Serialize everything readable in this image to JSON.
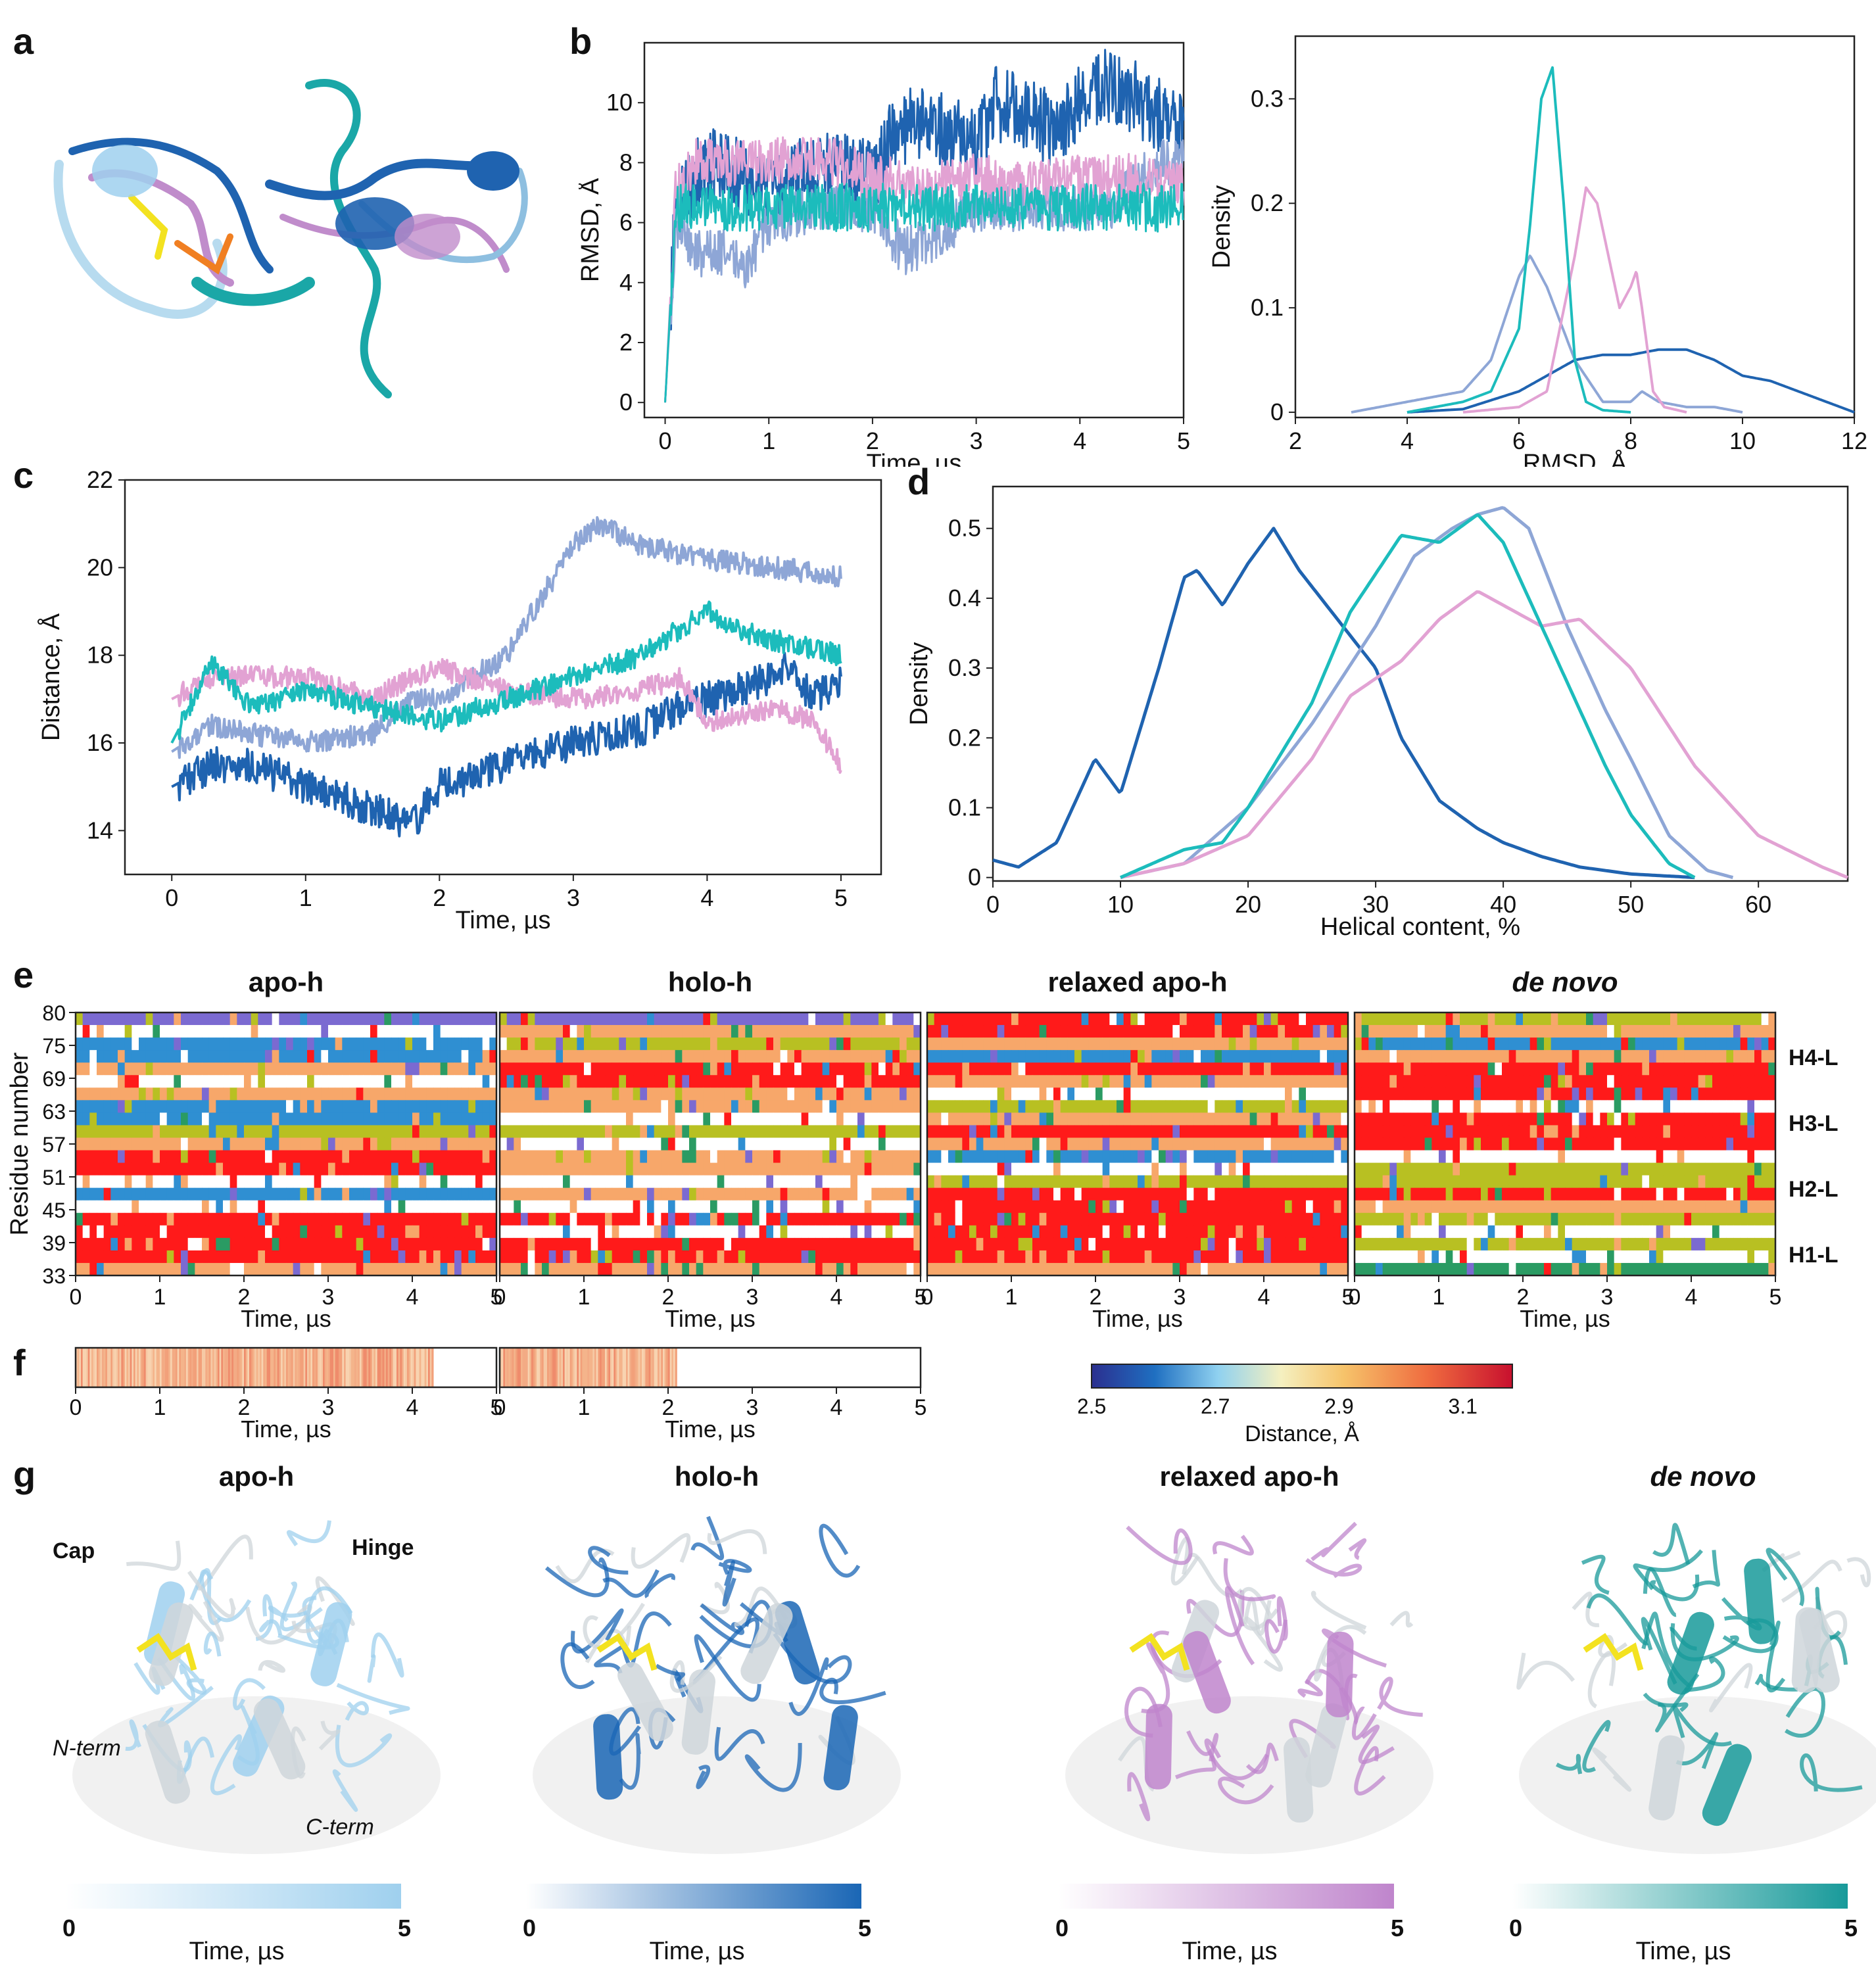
{
  "panel_labels": {
    "a": "a",
    "b": "b",
    "c": "c",
    "d": "d",
    "e": "e",
    "f": "f",
    "g": "g"
  },
  "colors": {
    "apo": "#1f63b0",
    "holo": "#8ea6d6",
    "relaxed": "#e2a2d3",
    "denovo": "#1cbcbc"
  },
  "chart_data": [
    {
      "id": "b_left",
      "type": "line",
      "title": "",
      "xlabel": "Time, µs",
      "ylabel": "RMSD, Å",
      "xlim": [
        -0.2,
        5.0
      ],
      "ylim": [
        -0.5,
        12.0
      ],
      "xticks": [
        0,
        1,
        2,
        3,
        4,
        5
      ],
      "yticks": [
        0,
        2,
        4,
        6,
        8,
        10
      ],
      "series": [
        {
          "name": "apo-h",
          "color": "#1f63b0",
          "x": [
            0,
            0.1,
            0.3,
            0.5,
            0.8,
            1.0,
            1.5,
            2.0,
            2.2,
            2.5,
            3.0,
            3.2,
            3.5,
            3.8,
            4.0,
            4.2,
            4.4,
            4.6,
            4.8,
            5.0
          ],
          "y": [
            0,
            6.5,
            7.5,
            8,
            7.5,
            7,
            8,
            7.5,
            9,
            9.5,
            8.5,
            10,
            9.5,
            9,
            10,
            10.5,
            10.5,
            10,
            9.5,
            9
          ]
        },
        {
          "name": "holo-h",
          "color": "#8ea6d6",
          "x": [
            0,
            0.1,
            0.3,
            0.6,
            0.8,
            1.0,
            1.5,
            2.0,
            2.3,
            2.6,
            3.0,
            3.5,
            4.0,
            4.3,
            4.6,
            4.8,
            5.0
          ],
          "y": [
            0,
            6,
            5,
            5,
            4.5,
            6,
            6.5,
            6.5,
            5,
            5.5,
            6.5,
            6.5,
            6.5,
            6.5,
            7.5,
            8,
            8
          ]
        },
        {
          "name": "relaxed apo-h",
          "color": "#e2a2d3",
          "x": [
            0,
            0.1,
            0.3,
            0.6,
            1.0,
            1.5,
            2.0,
            2.5,
            3.0,
            3.5,
            4.0,
            4.5,
            5.0
          ],
          "y": [
            0,
            7,
            8,
            8,
            8,
            8.2,
            7.5,
            7.2,
            7.5,
            7.2,
            7.5,
            7.5,
            7.2
          ]
        },
        {
          "name": "de novo",
          "color": "#1cbcbc",
          "x": [
            0,
            0.1,
            0.3,
            0.6,
            1.0,
            1.5,
            2.0,
            2.5,
            3.0,
            3.5,
            4.0,
            4.5,
            5.0
          ],
          "y": [
            0,
            6.5,
            6.5,
            6.5,
            6.5,
            6.5,
            6.5,
            6.5,
            6.5,
            6.5,
            6.5,
            6.5,
            6.5
          ]
        }
      ]
    },
    {
      "id": "b_right",
      "type": "line",
      "title": "",
      "xlabel": "RMSD, Å",
      "ylabel": "Density",
      "xlim": [
        2,
        12
      ],
      "ylim": [
        -0.005,
        0.36
      ],
      "xticks": [
        2,
        4,
        6,
        8,
        10,
        12
      ],
      "yticks": [
        0,
        0.1,
        0.2,
        0.3
      ],
      "yticklabels": [
        "0",
        "0.1",
        "0.2",
        "0.3"
      ],
      "series": [
        {
          "name": "apo-h",
          "color": "#1f63b0",
          "x": [
            4,
            5,
            6,
            7,
            7.5,
            8,
            8.5,
            9,
            9.5,
            10,
            10.5,
            11,
            11.5,
            12
          ],
          "y": [
            0,
            0.003,
            0.02,
            0.05,
            0.055,
            0.055,
            0.06,
            0.06,
            0.05,
            0.035,
            0.03,
            0.02,
            0.01,
            0
          ]
        },
        {
          "name": "holo-h",
          "color": "#8ea6d6",
          "x": [
            3,
            4,
            5,
            5.5,
            6,
            6.2,
            6.5,
            7,
            7.5,
            8,
            8.2,
            8.5,
            9,
            9.5,
            10
          ],
          "y": [
            0,
            0.01,
            0.02,
            0.05,
            0.13,
            0.15,
            0.12,
            0.05,
            0.01,
            0.01,
            0.02,
            0.01,
            0.005,
            0.005,
            0
          ]
        },
        {
          "name": "relaxed apo-h",
          "color": "#e2a2d3",
          "x": [
            5,
            6,
            6.5,
            7,
            7.2,
            7.4,
            7.6,
            7.8,
            8,
            8.1,
            8.2,
            8.4,
            8.6,
            9
          ],
          "y": [
            0,
            0.005,
            0.02,
            0.15,
            0.215,
            0.2,
            0.15,
            0.1,
            0.12,
            0.135,
            0.1,
            0.02,
            0.005,
            0
          ]
        },
        {
          "name": "de novo",
          "color": "#1cbcbc",
          "x": [
            4,
            4.5,
            5,
            5.5,
            6,
            6.2,
            6.4,
            6.6,
            6.8,
            7,
            7.2,
            7.5,
            8
          ],
          "y": [
            0,
            0.005,
            0.01,
            0.02,
            0.08,
            0.18,
            0.3,
            0.33,
            0.2,
            0.05,
            0.01,
            0.002,
            0
          ]
        }
      ]
    },
    {
      "id": "c",
      "type": "line",
      "title": "",
      "xlabel": "Time, µs",
      "ylabel": "Distance, Å",
      "xlim": [
        -0.35,
        5.3
      ],
      "ylim": [
        13,
        22
      ],
      "xticks": [
        0,
        1,
        2,
        3,
        4,
        5
      ],
      "yticks": [
        14,
        16,
        18,
        20,
        22
      ],
      "series": [
        {
          "name": "apo-h",
          "color": "#1f63b0",
          "x": [
            0,
            0.3,
            0.6,
            1.0,
            1.5,
            1.8,
            2.0,
            2.5,
            3.0,
            3.5,
            3.8,
            4.0,
            4.3,
            4.6,
            4.8,
            5.0
          ],
          "y": [
            15,
            15.5,
            15.5,
            15,
            14.5,
            14.1,
            15,
            15.5,
            16,
            16.3,
            16.8,
            17,
            17.3,
            17.7,
            17,
            17.5
          ]
        },
        {
          "name": "holo-h",
          "color": "#8ea6d6",
          "x": [
            0,
            0.3,
            0.6,
            1.0,
            1.5,
            1.8,
            2.0,
            2.5,
            2.8,
            3.0,
            3.2,
            3.5,
            4.0,
            4.5,
            5.0
          ],
          "y": [
            15.8,
            16.4,
            16.2,
            16,
            16.2,
            17,
            17,
            18,
            19.5,
            20.5,
            21,
            20.5,
            20.2,
            20,
            19.8
          ]
        },
        {
          "name": "relaxed apo-h",
          "color": "#e2a2d3",
          "x": [
            0,
            0.3,
            0.6,
            1.0,
            1.5,
            1.8,
            2.0,
            2.5,
            3.0,
            3.5,
            3.8,
            4.0,
            4.5,
            4.8,
            5.0
          ],
          "y": [
            17,
            17.5,
            17.5,
            17.5,
            17,
            17.5,
            17.7,
            17.2,
            17,
            17.2,
            17.5,
            16.5,
            16.8,
            16.5,
            15.5
          ]
        },
        {
          "name": "de novo",
          "color": "#1cbcbc",
          "x": [
            0,
            0.3,
            0.6,
            1.0,
            1.5,
            2.0,
            2.5,
            3.0,
            3.5,
            4.0,
            4.3,
            4.7,
            5.0
          ],
          "y": [
            16,
            17.8,
            16.8,
            17.2,
            16.8,
            16.5,
            17,
            17.5,
            18,
            19,
            18.5,
            18.2,
            18
          ]
        }
      ]
    },
    {
      "id": "d",
      "type": "line",
      "title": "",
      "xlabel": "Helical content, %",
      "ylabel": "Density",
      "xlim": [
        0,
        67
      ],
      "ylim": [
        -0.005,
        0.56
      ],
      "xticks": [
        0,
        10,
        20,
        30,
        40,
        50,
        60
      ],
      "yticks": [
        0,
        0.1,
        0.2,
        0.3,
        0.4,
        0.5
      ],
      "yticklabels": [
        "0",
        "0.1",
        "0.2",
        "0.3",
        "0.4",
        "0.5"
      ],
      "series": [
        {
          "name": "apo-h",
          "color": "#1f63b0",
          "x": [
            0,
            2,
            5,
            8,
            10,
            13,
            15,
            16,
            18,
            20,
            22,
            24,
            27,
            30,
            32,
            35,
            38,
            40,
            43,
            46,
            50,
            55
          ],
          "y": [
            0.025,
            0.015,
            0.05,
            0.17,
            0.12,
            0.3,
            0.43,
            0.44,
            0.39,
            0.45,
            0.5,
            0.44,
            0.37,
            0.3,
            0.2,
            0.11,
            0.07,
            0.05,
            0.03,
            0.015,
            0.005,
            0
          ]
        },
        {
          "name": "holo-h",
          "color": "#8ea6d6",
          "x": [
            10,
            15,
            20,
            25,
            30,
            33,
            36,
            38,
            40,
            42,
            45,
            48,
            50,
            53,
            56,
            58
          ],
          "y": [
            0,
            0.02,
            0.1,
            0.22,
            0.36,
            0.46,
            0.5,
            0.52,
            0.53,
            0.5,
            0.36,
            0.24,
            0.17,
            0.06,
            0.01,
            0
          ]
        },
        {
          "name": "relaxed apo-h",
          "color": "#e2a2d3",
          "x": [
            10,
            15,
            20,
            25,
            28,
            32,
            35,
            38,
            40,
            43,
            46,
            50,
            55,
            60,
            65,
            67
          ],
          "y": [
            0,
            0.02,
            0.06,
            0.17,
            0.26,
            0.31,
            0.37,
            0.41,
            0.39,
            0.36,
            0.37,
            0.3,
            0.16,
            0.06,
            0.015,
            0
          ]
        },
        {
          "name": "de novo",
          "color": "#1cbcbc",
          "x": [
            10,
            15,
            18,
            20,
            25,
            28,
            32,
            35,
            38,
            40,
            42,
            45,
            48,
            50,
            53,
            55
          ],
          "y": [
            0,
            0.04,
            0.05,
            0.1,
            0.25,
            0.38,
            0.49,
            0.48,
            0.52,
            0.48,
            0.4,
            0.28,
            0.16,
            0.09,
            0.02,
            0
          ]
        }
      ]
    }
  ],
  "panel_e": {
    "ylabel": "Residue number",
    "xlabel": "Time, µs",
    "yticks": [
      "33",
      "39",
      "45",
      "51",
      "57",
      "63",
      "69",
      "75",
      "80"
    ],
    "xticks": [
      "0",
      "1",
      "2",
      "3",
      "4",
      "5"
    ],
    "columns": [
      {
        "title": "apo-h",
        "italic": false
      },
      {
        "title": "holo-h",
        "italic": false
      },
      {
        "title": "relaxed apo-h",
        "italic": false
      },
      {
        "title": "de novo",
        "italic": true
      }
    ],
    "helix_labels": [
      "H4-L",
      "H3-L",
      "H2-L",
      "H1-L"
    ]
  },
  "panel_f": {
    "xlabel": "Time, µs",
    "xticks": [
      "0",
      "1",
      "2",
      "3",
      "4",
      "5"
    ],
    "colorbar": {
      "label": "Distance, Å",
      "ticks": [
        "2.5",
        "2.7",
        "2.9",
        "3.1"
      ]
    }
  },
  "panel_g": {
    "columns": [
      {
        "title": "apo-h",
        "italic": false,
        "min": "0",
        "max": "5",
        "label": "Time, µs",
        "color": "#9fd0ee"
      },
      {
        "title": "holo-h",
        "italic": false,
        "min": "0",
        "max": "5",
        "label": "Time, µs",
        "color": "#1a66b5"
      },
      {
        "title": "relaxed apo-h",
        "italic": false,
        "min": "0",
        "max": "5",
        "label": "Time, µs",
        "color": "#bf85cc"
      },
      {
        "title": "de novo",
        "italic": true,
        "min": "0",
        "max": "5",
        "label": "Time, µs",
        "color": "#189a9a"
      }
    ],
    "annotations": {
      "cap": "Cap",
      "hinge": "Hinge",
      "nterm": "N-term",
      "cterm": "C-term"
    }
  }
}
